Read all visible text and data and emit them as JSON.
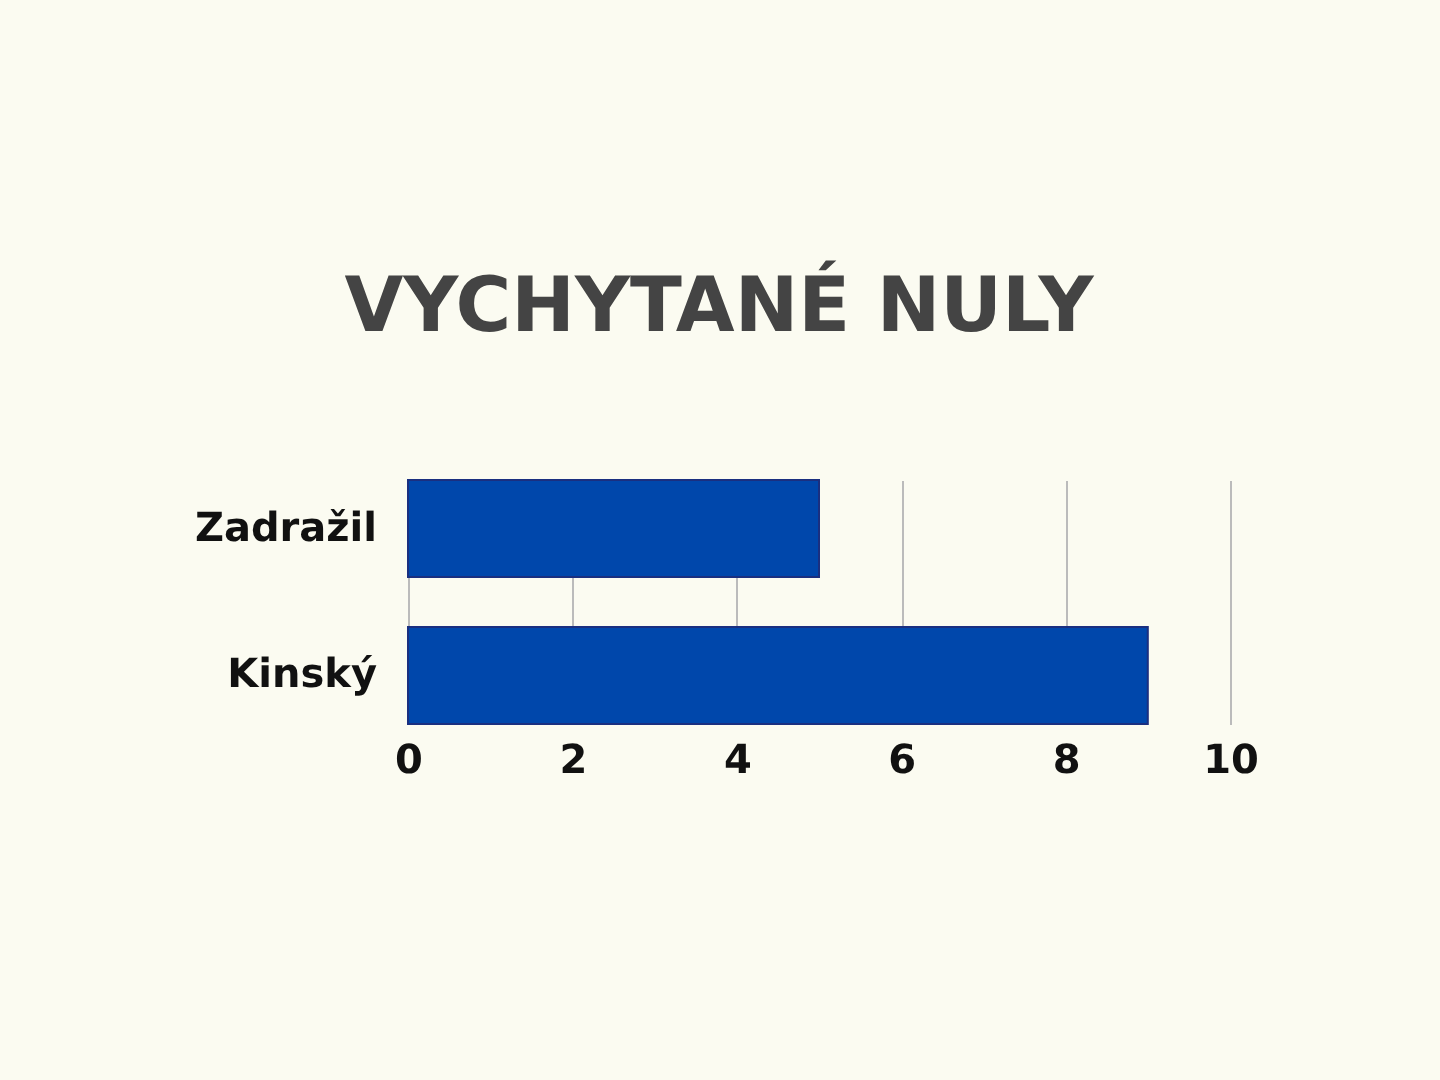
{
  "chart_data": {
    "type": "bar",
    "orientation": "horizontal",
    "title": "VYCHYTANÉ NULY",
    "categories": [
      "Zadražil",
      "Kinský"
    ],
    "values": [
      5,
      9
    ],
    "color": "#0047ab",
    "xlim": [
      0,
      10
    ],
    "xticks": [
      0,
      2,
      4,
      6,
      8,
      10
    ],
    "grid": "x"
  }
}
